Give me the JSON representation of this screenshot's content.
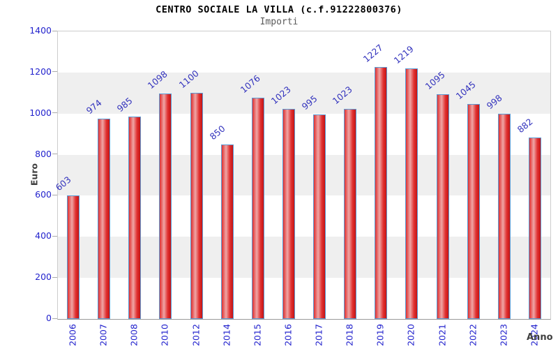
{
  "header": {
    "title": "CENTRO SOCIALE LA VILLA (c.f.91222800376)",
    "subtitle": "Importi"
  },
  "chart_data": {
    "type": "bar",
    "title": "CENTRO SOCIALE LA VILLA (c.f.91222800376)",
    "subtitle": "Importi",
    "categories": [
      "2006",
      "2007",
      "2008",
      "2010",
      "2012",
      "2014",
      "2015",
      "2016",
      "2017",
      "2018",
      "2019",
      "2020",
      "2021",
      "2022",
      "2023",
      "2024"
    ],
    "values": [
      603,
      974,
      985,
      1098,
      1100,
      850,
      1076,
      1023,
      995,
      1023,
      1227,
      1219,
      1095,
      1045,
      998,
      882
    ],
    "bar_value_labels": [
      "603",
      "974",
      "985",
      "1098",
      "1100",
      "850",
      "1076",
      "1023",
      "995",
      "1023",
      "1227",
      "1219",
      "1095",
      "1045",
      "998",
      "882"
    ],
    "xlabel": "Anno",
    "ylabel": "Euro",
    "ylim": [
      0,
      1400
    ],
    "yticks": [
      0,
      200,
      400,
      600,
      800,
      1000,
      1200,
      1400
    ],
    "grid": "alternating-horizontal-bands",
    "legend_position": "none"
  },
  "colors": {
    "tick_label": "#2323cd",
    "value_label": "#3232bd",
    "axis_title": "#3f3f3f",
    "subtitle": "#5a5a5a",
    "band_gray": "#efefef",
    "bar_border": "#5b9bd5",
    "bar_red_left": "#e03030",
    "bar_highlight": "#efa6a6",
    "bar_red_right": "#c41414"
  }
}
